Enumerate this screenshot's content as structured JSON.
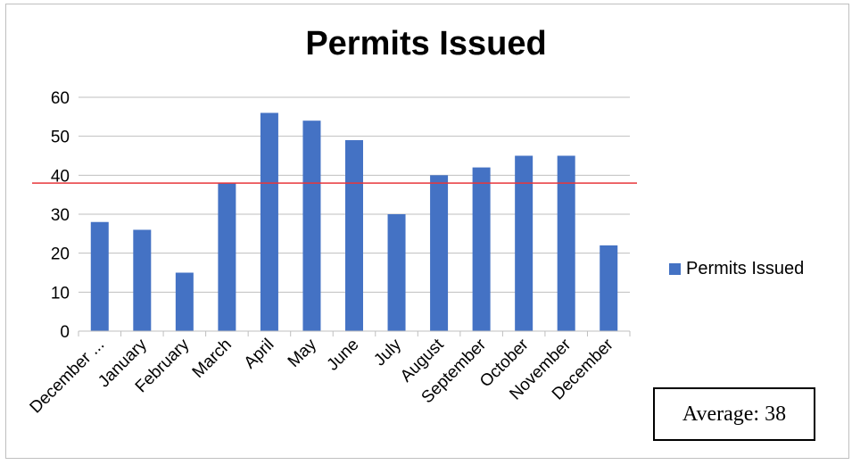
{
  "chart_data": {
    "type": "bar",
    "title": "Permits Issued",
    "categories": [
      "December ...",
      "January",
      "February",
      "March",
      "April",
      "May",
      "June",
      "July",
      "August",
      "September",
      "October",
      "November",
      "December"
    ],
    "series": [
      {
        "name": "Permits Issued",
        "values": [
          28,
          26,
          15,
          38,
          56,
          54,
          49,
          30,
          40,
          42,
          45,
          45,
          22
        ],
        "color": "#4472c4"
      }
    ],
    "yticks": [
      "0",
      "10",
      "20",
      "30",
      "40",
      "50",
      "60"
    ],
    "ylim": [
      0,
      60
    ],
    "grid": true,
    "reference_line": {
      "value": 38,
      "color": "#e8363a"
    },
    "legend_position": "right"
  },
  "annotation": {
    "average_label": "Average: 38"
  }
}
